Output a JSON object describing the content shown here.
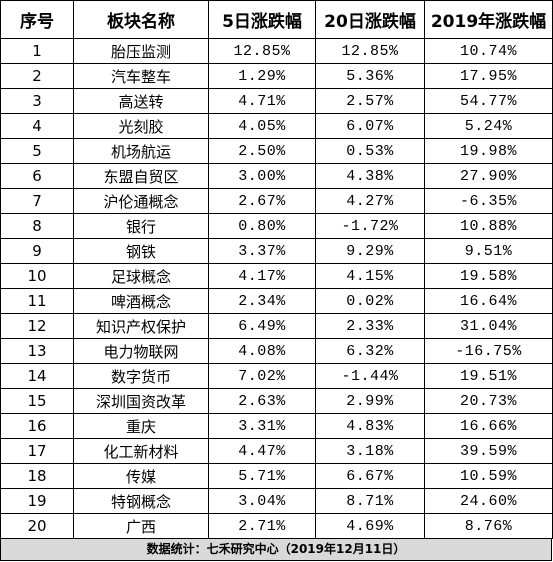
{
  "table": {
    "headers": [
      "序号",
      "板块名称",
      "5日涨跌幅",
      "20日涨跌幅",
      "2019年涨跌幅"
    ],
    "rows": [
      {
        "no": "1",
        "name": "胎压监测",
        "d5": "12.85%",
        "d20": "12.85%",
        "y2019": "10.74%"
      },
      {
        "no": "2",
        "name": "汽车整车",
        "d5": "1.29%",
        "d20": "5.36%",
        "y2019": "17.95%"
      },
      {
        "no": "3",
        "name": "高送转",
        "d5": "4.71%",
        "d20": "2.57%",
        "y2019": "54.77%"
      },
      {
        "no": "4",
        "name": "光刻胶",
        "d5": "4.05%",
        "d20": "6.07%",
        "y2019": "5.24%"
      },
      {
        "no": "5",
        "name": "机场航运",
        "d5": "2.50%",
        "d20": "0.53%",
        "y2019": "19.98%"
      },
      {
        "no": "6",
        "name": "东盟自贸区",
        "d5": "3.00%",
        "d20": "4.38%",
        "y2019": "27.90%"
      },
      {
        "no": "7",
        "name": "沪伦通概念",
        "d5": "2.67%",
        "d20": "4.27%",
        "y2019": "-6.35%"
      },
      {
        "no": "8",
        "name": "银行",
        "d5": "0.80%",
        "d20": "-1.72%",
        "y2019": "10.88%"
      },
      {
        "no": "9",
        "name": "钢铁",
        "d5": "3.37%",
        "d20": "9.29%",
        "y2019": "9.51%"
      },
      {
        "no": "10",
        "name": "足球概念",
        "d5": "4.17%",
        "d20": "4.15%",
        "y2019": "19.58%"
      },
      {
        "no": "11",
        "name": "啤酒概念",
        "d5": "2.34%",
        "d20": "0.02%",
        "y2019": "16.64%"
      },
      {
        "no": "12",
        "name": "知识产权保护",
        "d5": "6.49%",
        "d20": "2.33%",
        "y2019": "31.04%"
      },
      {
        "no": "13",
        "name": "电力物联网",
        "d5": "4.08%",
        "d20": "6.32%",
        "y2019": "-16.75%"
      },
      {
        "no": "14",
        "name": "数字货币",
        "d5": "7.02%",
        "d20": "-1.44%",
        "y2019": "19.51%"
      },
      {
        "no": "15",
        "name": "深圳国资改革",
        "d5": "2.63%",
        "d20": "2.99%",
        "y2019": "20.73%"
      },
      {
        "no": "16",
        "name": "重庆",
        "d5": "3.31%",
        "d20": "4.83%",
        "y2019": "16.66%"
      },
      {
        "no": "17",
        "name": "化工新材料",
        "d5": "4.47%",
        "d20": "3.18%",
        "y2019": "39.59%"
      },
      {
        "no": "18",
        "name": "传媒",
        "d5": "5.71%",
        "d20": "6.67%",
        "y2019": "10.59%"
      },
      {
        "no": "19",
        "name": "特钢概念",
        "d5": "3.04%",
        "d20": "8.71%",
        "y2019": "24.60%"
      },
      {
        "no": "20",
        "name": "广西",
        "d5": "2.71%",
        "d20": "4.69%",
        "y2019": "8.76%"
      }
    ]
  },
  "footer": {
    "text": "数据统计：七禾研究中心（2019年12月11日）"
  },
  "colors": {
    "footer_bg": "#d9d9d9",
    "border": "#000000"
  }
}
